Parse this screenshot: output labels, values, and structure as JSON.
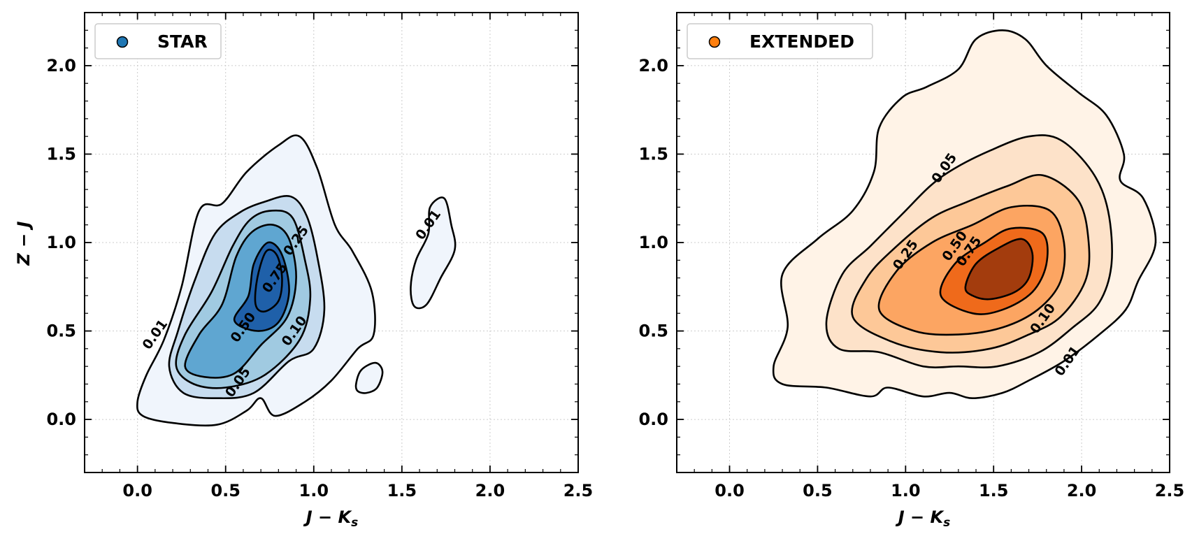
{
  "colors": {
    "star_levels": [
      "#f0f5fc",
      "#c7dcef",
      "#a0cae1",
      "#5fa6d1",
      "#1f60a9"
    ],
    "extended_levels": [
      "#fff3e7",
      "#fde2c9",
      "#fdc898",
      "#fca562",
      "#ef6a1b",
      "#a33c0d"
    ],
    "star_marker": "#1f77b4",
    "extended_marker": "#ff7f0e",
    "grid": "#cccccc"
  },
  "chart_data": [
    {
      "type": "contour",
      "legend": "STAR",
      "legend_position": "top-left",
      "xlabel": "J − K",
      "xlabel_sub": "s",
      "ylabel": "Z − J",
      "xlim": [
        -0.3,
        2.5
      ],
      "ylim": [
        -0.3,
        2.3
      ],
      "xticks": [
        "0.0",
        "0.5",
        "1.0",
        "1.5",
        "2.0",
        "2.5"
      ],
      "yticks": [
        "0.0",
        "0.5",
        "1.0",
        "1.5",
        "2.0"
      ],
      "grid": true,
      "contour_levels": [
        "0.01",
        "0.05",
        "0.10",
        "0.25",
        "0.50",
        "0.75"
      ],
      "contours": [
        {
          "level": "0.01",
          "points": [
            [
              0.0,
              0.1
            ],
            [
              0.05,
              0.25
            ],
            [
              0.15,
              0.45
            ],
            [
              0.25,
              0.75
            ],
            [
              0.35,
              1.18
            ],
            [
              0.48,
              1.22
            ],
            [
              0.62,
              1.4
            ],
            [
              0.8,
              1.55
            ],
            [
              0.92,
              1.6
            ],
            [
              1.02,
              1.42
            ],
            [
              1.12,
              1.1
            ],
            [
              1.22,
              0.95
            ],
            [
              1.33,
              0.72
            ],
            [
              1.34,
              0.48
            ],
            [
              1.25,
              0.4
            ],
            [
              1.1,
              0.22
            ],
            [
              0.95,
              0.1
            ],
            [
              0.78,
              0.02
            ],
            [
              0.7,
              0.12
            ],
            [
              0.62,
              0.05
            ],
            [
              0.45,
              -0.03
            ],
            [
              0.2,
              -0.02
            ],
            [
              0.03,
              0.02
            ]
          ]
        },
        {
          "level": "0.01",
          "points": [
            [
              1.55,
              0.75
            ],
            [
              1.58,
              0.9
            ],
            [
              1.65,
              1.05
            ],
            [
              1.66,
              1.2
            ],
            [
              1.74,
              1.25
            ],
            [
              1.78,
              1.1
            ],
            [
              1.8,
              0.96
            ],
            [
              1.72,
              0.8
            ],
            [
              1.64,
              0.65
            ],
            [
              1.57,
              0.64
            ]
          ]
        },
        {
          "level": "0.01",
          "points": [
            [
              1.24,
              0.2
            ],
            [
              1.27,
              0.28
            ],
            [
              1.35,
              0.32
            ],
            [
              1.39,
              0.27
            ],
            [
              1.36,
              0.18
            ],
            [
              1.3,
              0.15
            ],
            [
              1.25,
              0.16
            ]
          ]
        },
        {
          "level": "0.05",
          "points": [
            [
              0.18,
              0.3
            ],
            [
              0.23,
              0.5
            ],
            [
              0.33,
              0.8
            ],
            [
              0.44,
              1.05
            ],
            [
              0.58,
              1.17
            ],
            [
              0.72,
              1.23
            ],
            [
              0.87,
              1.26
            ],
            [
              0.96,
              1.15
            ],
            [
              1.02,
              0.92
            ],
            [
              1.06,
              0.62
            ],
            [
              1.0,
              0.4
            ],
            [
              0.86,
              0.33
            ],
            [
              0.66,
              0.15
            ],
            [
              0.45,
              0.12
            ],
            [
              0.26,
              0.15
            ]
          ]
        },
        {
          "level": "0.10",
          "points": [
            [
              0.22,
              0.3
            ],
            [
              0.27,
              0.48
            ],
            [
              0.42,
              0.72
            ],
            [
              0.54,
              0.98
            ],
            [
              0.64,
              1.13
            ],
            [
              0.76,
              1.18
            ],
            [
              0.88,
              1.14
            ],
            [
              0.95,
              0.9
            ],
            [
              0.98,
              0.68
            ],
            [
              0.92,
              0.45
            ],
            [
              0.72,
              0.25
            ],
            [
              0.5,
              0.18
            ],
            [
              0.32,
              0.2
            ]
          ]
        },
        {
          "level": "0.25",
          "points": [
            [
              0.27,
              0.3
            ],
            [
              0.35,
              0.48
            ],
            [
              0.48,
              0.65
            ],
            [
              0.56,
              0.92
            ],
            [
              0.65,
              1.06
            ],
            [
              0.77,
              1.1
            ],
            [
              0.86,
              1.02
            ],
            [
              0.9,
              0.8
            ],
            [
              0.85,
              0.58
            ],
            [
              0.7,
              0.42
            ],
            [
              0.55,
              0.26
            ],
            [
              0.38,
              0.24
            ]
          ]
        },
        {
          "level": "0.50",
          "points": [
            [
              0.55,
              0.56
            ],
            [
              0.63,
              0.7
            ],
            [
              0.66,
              0.88
            ],
            [
              0.74,
              1.0
            ],
            [
              0.82,
              0.93
            ],
            [
              0.86,
              0.72
            ],
            [
              0.8,
              0.55
            ],
            [
              0.68,
              0.5
            ]
          ]
        },
        {
          "level": "0.75",
          "points": [
            [
              0.67,
              0.65
            ],
            [
              0.68,
              0.8
            ],
            [
              0.73,
              0.95
            ],
            [
              0.79,
              0.93
            ],
            [
              0.82,
              0.8
            ],
            [
              0.8,
              0.67
            ],
            [
              0.72,
              0.61
            ]
          ]
        }
      ],
      "contour_label_positions": [
        {
          "label": "0.01",
          "x": 0.1,
          "y": 0.48
        },
        {
          "label": "0.01",
          "x": 1.65,
          "y": 1.1
        },
        {
          "label": "0.05",
          "x": 0.57,
          "y": 0.21
        },
        {
          "label": "0.10",
          "x": 0.89,
          "y": 0.5
        },
        {
          "label": "0.25",
          "x": 0.9,
          "y": 1.01
        },
        {
          "label": "0.50",
          "x": 0.6,
          "y": 0.52
        },
        {
          "label": "0.75",
          "x": 0.78,
          "y": 0.8
        }
      ]
    },
    {
      "type": "contour",
      "legend": "EXTENDED",
      "legend_position": "top-left",
      "xlabel": "J − K",
      "xlabel_sub": "s",
      "ylabel": "",
      "xlim": [
        -0.3,
        2.5
      ],
      "ylim": [
        -0.3,
        2.3
      ],
      "xticks": [
        "0.0",
        "0.5",
        "1.0",
        "1.5",
        "2.0",
        "2.5"
      ],
      "yticks": [
        "0.0",
        "0.5",
        "1.0",
        "1.5",
        "2.0"
      ],
      "grid": true,
      "contour_levels": [
        "0.01",
        "0.05",
        "0.10",
        "0.25",
        "0.50",
        "0.75"
      ],
      "contours": [
        {
          "level": "0.01",
          "points": [
            [
              0.25,
              0.3
            ],
            [
              0.33,
              0.52
            ],
            [
              0.3,
              0.82
            ],
            [
              0.5,
              1.02
            ],
            [
              0.7,
              1.18
            ],
            [
              0.82,
              1.4
            ],
            [
              0.85,
              1.65
            ],
            [
              0.98,
              1.82
            ],
            [
              1.12,
              1.88
            ],
            [
              1.3,
              1.98
            ],
            [
              1.4,
              2.15
            ],
            [
              1.55,
              2.2
            ],
            [
              1.68,
              2.15
            ],
            [
              1.8,
              2.0
            ],
            [
              1.98,
              1.85
            ],
            [
              2.14,
              1.72
            ],
            [
              2.24,
              1.5
            ],
            [
              2.22,
              1.35
            ],
            [
              2.35,
              1.25
            ],
            [
              2.42,
              1.0
            ],
            [
              2.32,
              0.78
            ],
            [
              2.25,
              0.62
            ],
            [
              2.1,
              0.48
            ],
            [
              1.9,
              0.33
            ],
            [
              1.7,
              0.22
            ],
            [
              1.55,
              0.15
            ],
            [
              1.38,
              0.12
            ],
            [
              1.25,
              0.15
            ],
            [
              1.1,
              0.13
            ],
            [
              0.9,
              0.18
            ],
            [
              0.8,
              0.13
            ],
            [
              0.55,
              0.18
            ],
            [
              0.3,
              0.2
            ]
          ]
        },
        {
          "level": "0.05",
          "points": [
            [
              0.55,
              0.55
            ],
            [
              0.64,
              0.82
            ],
            [
              0.8,
              0.98
            ],
            [
              0.98,
              1.16
            ],
            [
              1.14,
              1.32
            ],
            [
              1.28,
              1.42
            ],
            [
              1.48,
              1.52
            ],
            [
              1.7,
              1.6
            ],
            [
              1.88,
              1.58
            ],
            [
              2.06,
              1.4
            ],
            [
              2.15,
              1.18
            ],
            [
              2.17,
              0.88
            ],
            [
              2.1,
              0.66
            ],
            [
              1.95,
              0.52
            ],
            [
              1.76,
              0.38
            ],
            [
              1.52,
              0.3
            ],
            [
              1.3,
              0.3
            ],
            [
              1.1,
              0.3
            ],
            [
              0.85,
              0.38
            ],
            [
              0.62,
              0.4
            ]
          ]
        },
        {
          "level": "0.10",
          "points": [
            [
              0.7,
              0.58
            ],
            [
              0.78,
              0.8
            ],
            [
              0.95,
              0.98
            ],
            [
              1.15,
              1.14
            ],
            [
              1.35,
              1.23
            ],
            [
              1.58,
              1.32
            ],
            [
              1.78,
              1.38
            ],
            [
              1.98,
              1.24
            ],
            [
              2.04,
              1.0
            ],
            [
              2.02,
              0.78
            ],
            [
              1.88,
              0.58
            ],
            [
              1.7,
              0.48
            ],
            [
              1.48,
              0.4
            ],
            [
              1.2,
              0.38
            ],
            [
              0.92,
              0.44
            ]
          ]
        },
        {
          "level": "0.25",
          "points": [
            [
              0.85,
              0.62
            ],
            [
              0.95,
              0.84
            ],
            [
              1.15,
              1.0
            ],
            [
              1.38,
              1.1
            ],
            [
              1.6,
              1.2
            ],
            [
              1.82,
              1.18
            ],
            [
              1.9,
              1.0
            ],
            [
              1.88,
              0.78
            ],
            [
              1.75,
              0.62
            ],
            [
              1.55,
              0.52
            ],
            [
              1.3,
              0.48
            ],
            [
              1.05,
              0.5
            ]
          ]
        },
        {
          "level": "0.50",
          "points": [
            [
              1.2,
              0.7
            ],
            [
              1.28,
              0.88
            ],
            [
              1.45,
              1.0
            ],
            [
              1.6,
              1.08
            ],
            [
              1.78,
              1.05
            ],
            [
              1.8,
              0.88
            ],
            [
              1.72,
              0.72
            ],
            [
              1.55,
              0.62
            ],
            [
              1.38,
              0.6
            ]
          ]
        },
        {
          "level": "0.75",
          "points": [
            [
              1.34,
              0.75
            ],
            [
              1.4,
              0.88
            ],
            [
              1.53,
              0.97
            ],
            [
              1.66,
              1.02
            ],
            [
              1.72,
              0.94
            ],
            [
              1.7,
              0.8
            ],
            [
              1.62,
              0.72
            ],
            [
              1.48,
              0.68
            ],
            [
              1.38,
              0.7
            ]
          ]
        }
      ],
      "contour_label_positions": [
        {
          "label": "0.05",
          "x": 1.22,
          "y": 1.42
        },
        {
          "label": "0.25",
          "x": 1.0,
          "y": 0.93
        },
        {
          "label": "0.50",
          "x": 1.28,
          "y": 0.98
        },
        {
          "label": "0.75",
          "x": 1.36,
          "y": 0.95
        },
        {
          "label": "0.10",
          "x": 1.78,
          "y": 0.57
        },
        {
          "label": "0.01",
          "x": 1.92,
          "y": 0.33
        }
      ]
    }
  ]
}
